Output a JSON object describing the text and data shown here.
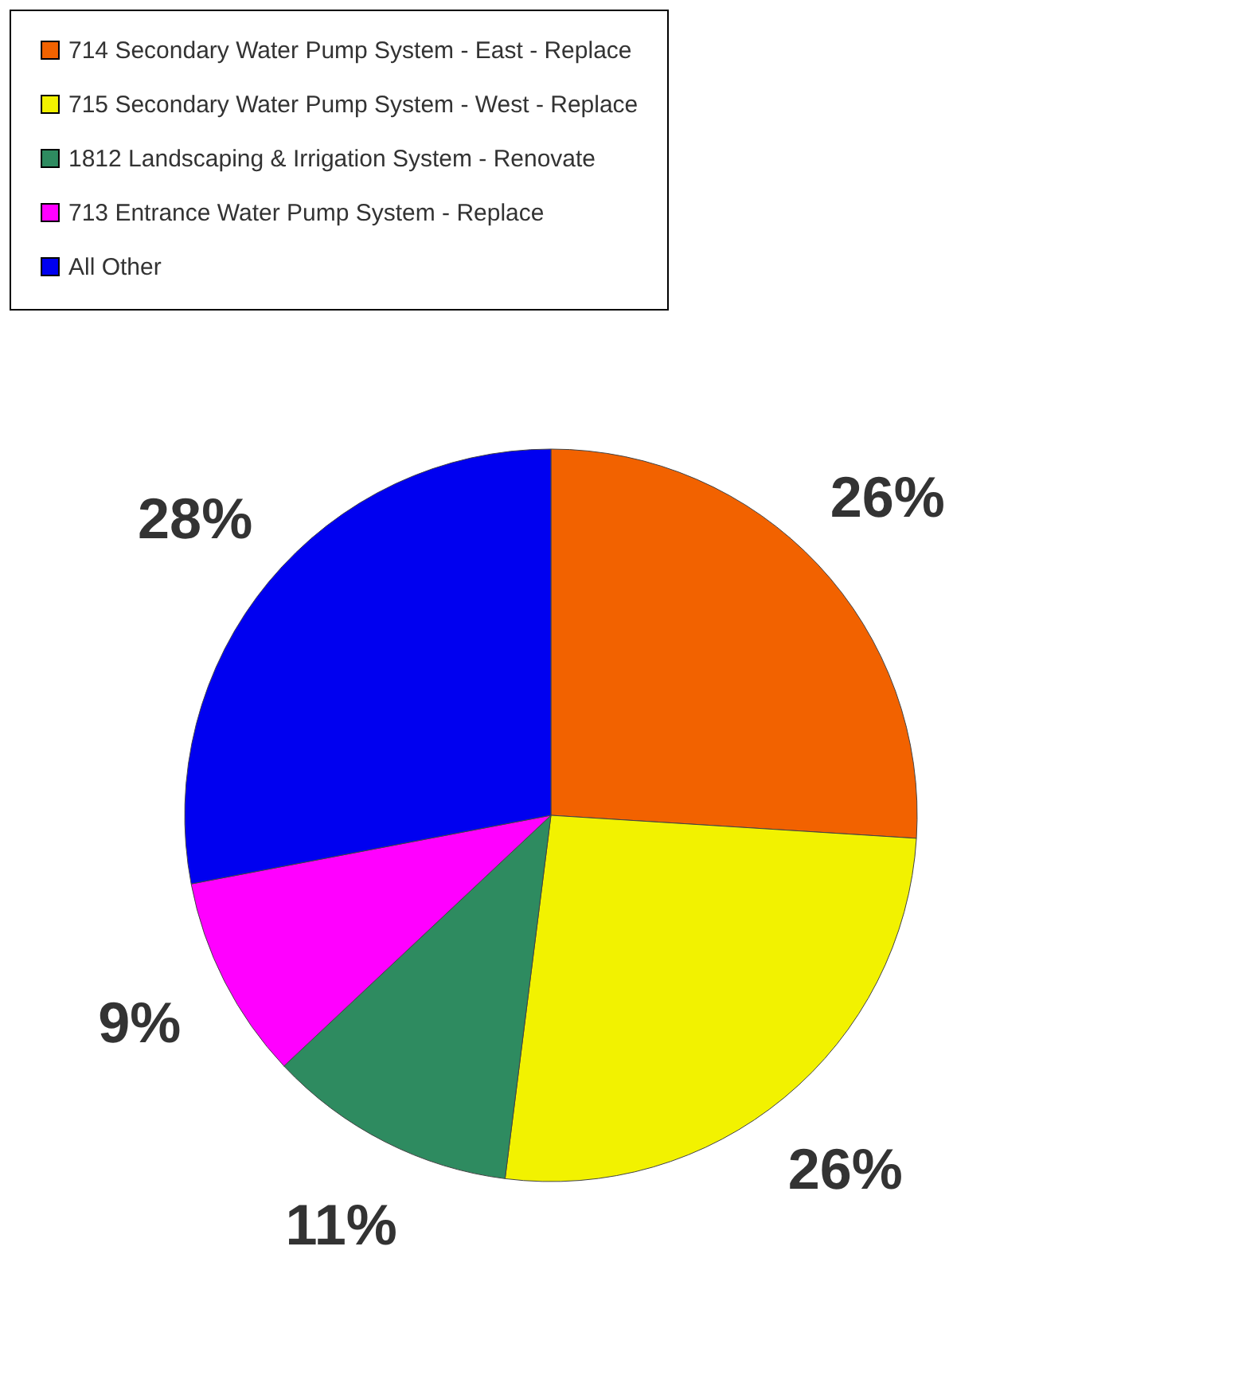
{
  "chart_data": {
    "type": "pie",
    "categories": [
      "714 Secondary Water Pump System - East - Replace",
      "715 Secondary Water Pump System - West - Replace",
      "1812 Landscaping & Irrigation System - Renovate",
      "713 Entrance Water Pump System - Replace",
      "All Other"
    ],
    "values": [
      26,
      26,
      11,
      9,
      28
    ],
    "colors": [
      "#f26200",
      "#f2f200",
      "#2e8b60",
      "#ff00ff",
      "#0000f0"
    ],
    "value_labels": [
      "26%",
      "26%",
      "11%",
      "9%",
      "28%"
    ],
    "legend": "top"
  }
}
